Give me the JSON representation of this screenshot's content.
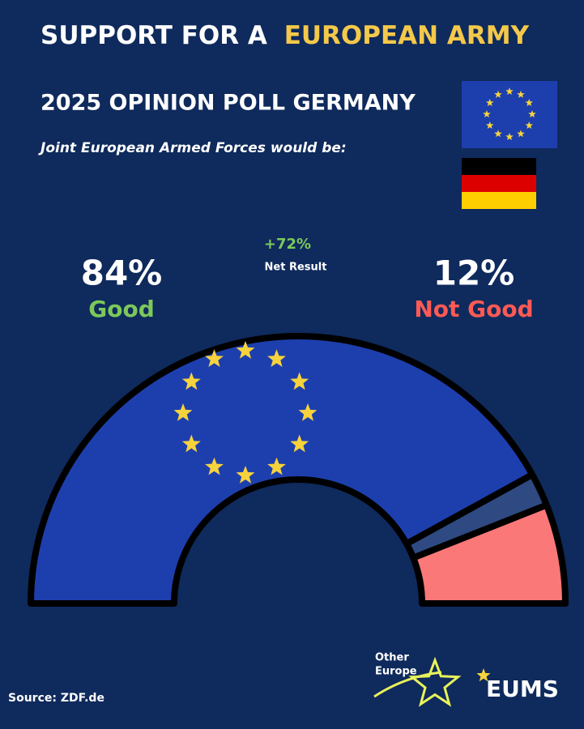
{
  "chart_data": {
    "type": "semi_donut",
    "title": "SUPPORT FOR A",
    "title_highlight": "EUROPEAN ARMY",
    "subtitle": "2025 OPINION POLL GERMANY",
    "question": "Joint European Armed Forces would be:",
    "categories": [
      "Good",
      null,
      "Not Good"
    ],
    "values": [
      84,
      4,
      12
    ],
    "value_labels": [
      "84%",
      null,
      "12%"
    ],
    "colors": [
      "#1d3fae",
      "#2f4a82",
      "#fa7878"
    ],
    "label_colors": [
      "#7cc95a",
      null,
      "#ff5a55"
    ],
    "net_result": "+72%",
    "net_result_label": "Net Result"
  },
  "source": "Source: ZDF.de",
  "logos": {
    "other_europe": [
      "Other",
      "Europe"
    ],
    "eums": "EUMS"
  }
}
